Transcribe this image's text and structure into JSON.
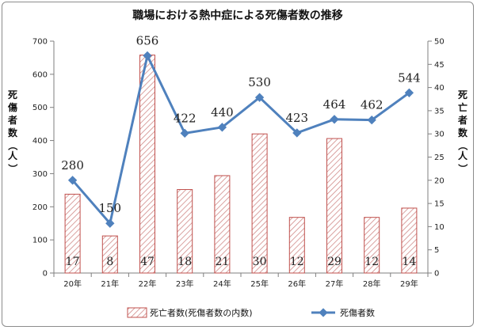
{
  "chart_data": {
    "type": "bar+line",
    "title": "職場における熱中症による死傷者数の推移",
    "categories": [
      "20年",
      "21年",
      "22年",
      "23年",
      "24年",
      "25年",
      "26年",
      "27年",
      "28年",
      "29年"
    ],
    "series": [
      {
        "name": "死亡者数(死傷者数の内数)",
        "type": "bar",
        "axis": "right",
        "values": [
          17,
          8,
          47,
          18,
          21,
          30,
          12,
          29,
          12,
          14
        ],
        "color": "#c0504d"
      },
      {
        "name": "死傷者数",
        "type": "line",
        "axis": "left",
        "values": [
          280,
          150,
          656,
          422,
          440,
          530,
          423,
          464,
          462,
          544
        ],
        "color": "#4f81bd"
      }
    ],
    "y_left": {
      "label": "死傷者数（人）",
      "lim": [
        0,
        700
      ],
      "ticks": [
        0,
        100,
        200,
        300,
        400,
        500,
        600,
        700
      ]
    },
    "y_right": {
      "label": "死亡者数（人）",
      "lim": [
        0,
        50
      ],
      "ticks": [
        0,
        5,
        10,
        15,
        20,
        25,
        30,
        35,
        40,
        45,
        50
      ]
    },
    "legend_position": "bottom",
    "grid": false
  }
}
